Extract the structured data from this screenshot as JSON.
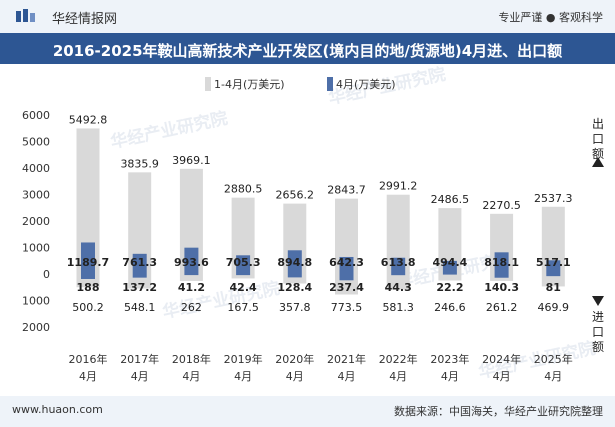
{
  "header": {
    "site_name": "华经情报网",
    "tagline": "专业严谨 ● 客观科学"
  },
  "footer": {
    "website": "www.huaon.com",
    "source": "数据来源：中国海关，华经产业研究院整理"
  },
  "watermark": "华经产业研究院",
  "colors": {
    "title_bg": "#2d5693",
    "series_ytd": "#d9d9d9",
    "series_month": "#4e6fa8"
  },
  "chart_data": {
    "type": "bar",
    "title": "2016-2025年鞍山高新技术产业开发区(境内目的地/货源地)4月进、出口额",
    "categories": [
      "2016年\n4月",
      "2017年\n4月",
      "2018年\n4月",
      "2019年\n4月",
      "2020年\n4月",
      "2021年\n4月",
      "2022年\n4月",
      "2023年\n4月",
      "2024年\n4月",
      "2025年\n4月"
    ],
    "export_label": "出口额",
    "import_label": "进口额",
    "ylim": [
      -2000,
      6000
    ],
    "yticks": [
      -2000,
      -1000,
      0,
      1000,
      2000,
      3000,
      4000,
      5000,
      6000
    ],
    "ytick_labels": [
      "2000",
      "1000",
      "0",
      "1000",
      "2000",
      "3000",
      "4000",
      "5000",
      "6000"
    ],
    "legend": "top-center",
    "series": [
      {
        "name": "1-4月(万美元)",
        "export": [
          5492.8,
          3835.9,
          3969.1,
          2880.5,
          2656.2,
          2843.7,
          2991.2,
          2486.5,
          2270.5,
          2537.3
        ],
        "import": [
          500.2,
          548.1,
          262,
          167.5,
          357.8,
          773.5,
          581.3,
          246.6,
          261.2,
          469.9
        ]
      },
      {
        "name": "4月(万美元)",
        "export": [
          1189.7,
          761.3,
          993.6,
          705.3,
          894.8,
          642.3,
          613.8,
          494.4,
          818.1,
          517.1
        ],
        "import": [
          188,
          137.2,
          41.2,
          42.4,
          128.4,
          237.4,
          44.3,
          22.2,
          140.3,
          81
        ]
      }
    ]
  }
}
